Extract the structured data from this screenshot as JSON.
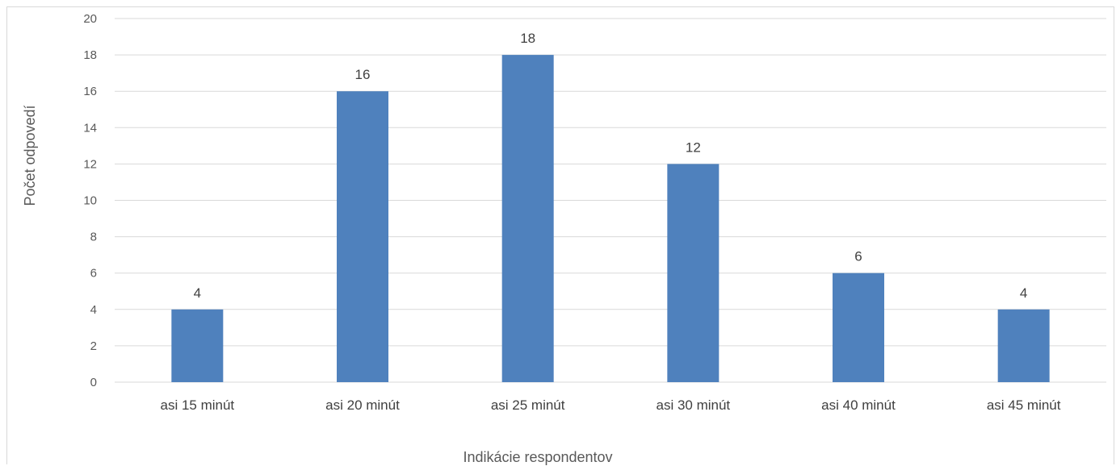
{
  "chart_data": {
    "type": "bar",
    "title": "",
    "xlabel": "Indikácie respondentov",
    "ylabel": "Počet odpovedí",
    "categories": [
      "asi 15 minút",
      "asi 20 minút",
      "asi 25 minút",
      "asi 30 minút",
      "asi 40 minút",
      "asi 45 minút"
    ],
    "values": [
      4,
      16,
      18,
      12,
      6,
      4
    ],
    "ylim": [
      0,
      20
    ],
    "yticks": [
      0,
      2,
      4,
      6,
      8,
      10,
      12,
      14,
      16,
      18,
      20
    ],
    "grid": true,
    "legend": "none",
    "data_labels": true,
    "bar_color": "#4f81bd",
    "grid_color": "#d9d9d9"
  }
}
